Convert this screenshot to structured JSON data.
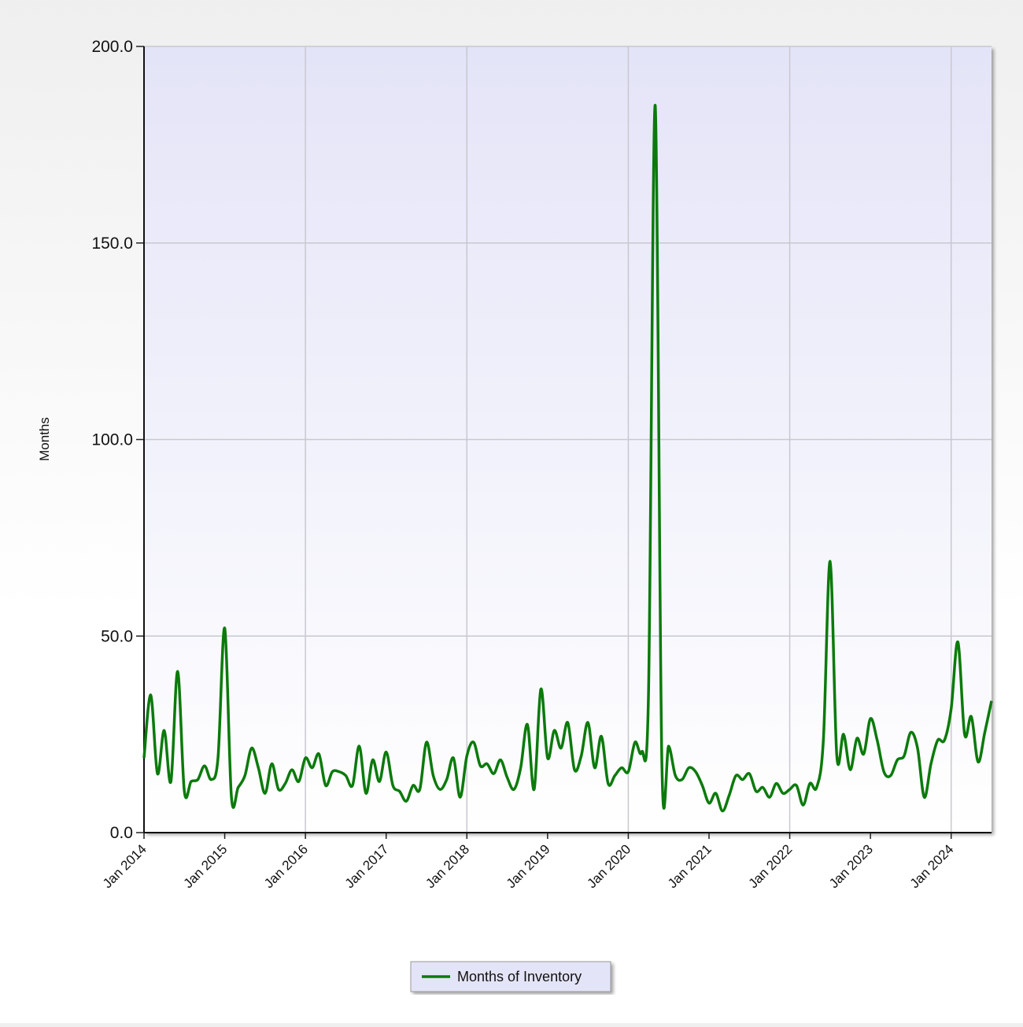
{
  "chart_data": {
    "type": "line",
    "y_label": "Months",
    "x": [
      "2014-01",
      "2014-02",
      "2014-03",
      "2014-04",
      "2014-05",
      "2014-06",
      "2014-07",
      "2014-08",
      "2014-09",
      "2014-10",
      "2014-11",
      "2014-12",
      "2015-01",
      "2015-02",
      "2015-03",
      "2015-04",
      "2015-05",
      "2015-06",
      "2015-07",
      "2015-08",
      "2015-09",
      "2015-10",
      "2015-11",
      "2015-12",
      "2016-01",
      "2016-02",
      "2016-03",
      "2016-04",
      "2016-05",
      "2016-06",
      "2016-07",
      "2016-08",
      "2016-09",
      "2016-10",
      "2016-11",
      "2016-12",
      "2017-01",
      "2017-02",
      "2017-03",
      "2017-04",
      "2017-05",
      "2017-06",
      "2017-07",
      "2017-08",
      "2017-09",
      "2017-10",
      "2017-11",
      "2017-12",
      "2018-01",
      "2018-02",
      "2018-03",
      "2018-04",
      "2018-05",
      "2018-06",
      "2018-07",
      "2018-08",
      "2018-09",
      "2018-10",
      "2018-11",
      "2018-12",
      "2019-01",
      "2019-02",
      "2019-03",
      "2019-04",
      "2019-05",
      "2019-06",
      "2019-07",
      "2019-08",
      "2019-09",
      "2019-10",
      "2019-11",
      "2019-12",
      "2020-01",
      "2020-02",
      "2020-03",
      "2020-04",
      "2020-05",
      "2020-06",
      "2020-07",
      "2020-08",
      "2020-09",
      "2020-10",
      "2020-11",
      "2020-12",
      "2021-01",
      "2021-02",
      "2021-03",
      "2021-04",
      "2021-05",
      "2021-06",
      "2021-07",
      "2021-08",
      "2021-09",
      "2021-10",
      "2021-11",
      "2021-12",
      "2022-01",
      "2022-02",
      "2022-03",
      "2022-04",
      "2022-05",
      "2022-06",
      "2022-07",
      "2022-08",
      "2022-09",
      "2022-10",
      "2022-11",
      "2022-12",
      "2023-01",
      "2023-02",
      "2023-03",
      "2023-04",
      "2023-05",
      "2023-06",
      "2023-07",
      "2023-08",
      "2023-09",
      "2023-10",
      "2023-11",
      "2023-12",
      "2024-01",
      "2024-02",
      "2024-03",
      "2024-04",
      "2024-05",
      "2024-06",
      "2024-07"
    ],
    "series": [
      {
        "name": "Months of Inventory",
        "color": "#0b7a0b",
        "values": [
          19,
          35,
          15,
          26,
          13,
          41,
          10.5,
          13,
          13.5,
          17,
          13.5,
          19,
          52,
          9,
          11.5,
          14.5,
          21.5,
          16.5,
          10,
          17.5,
          11,
          12.5,
          16,
          13,
          19,
          16.5,
          20,
          12,
          15.5,
          15.5,
          14.5,
          12,
          22,
          10,
          18.5,
          13,
          20.5,
          12,
          10.5,
          8,
          12,
          11,
          23,
          14.5,
          11,
          13.5,
          19,
          9,
          19.5,
          23,
          17,
          17.5,
          15,
          18.5,
          14,
          11,
          16.5,
          27.5,
          11,
          36.5,
          19,
          26,
          21.5,
          28,
          16,
          19.5,
          28,
          16.5,
          24.5,
          12.5,
          14.5,
          16.5,
          15.5,
          23,
          20.5,
          35,
          185,
          17,
          22,
          14.5,
          13.5,
          16.5,
          15.5,
          12,
          7.5,
          10,
          5.5,
          9.5,
          14.5,
          13.5,
          15,
          10.5,
          11.5,
          9,
          12.5,
          10,
          11,
          12,
          7,
          12.5,
          11.5,
          23.5,
          69,
          19.5,
          25,
          16,
          24,
          20,
          29,
          23.5,
          15.5,
          14.5,
          18.5,
          19.5,
          25.5,
          21.5,
          9,
          17.5,
          23.5,
          23.5,
          31.5,
          48.5,
          25,
          29.5,
          18,
          25.5,
          33.5
        ]
      }
    ],
    "xlim": [
      "2014-01",
      "2024-07"
    ],
    "xticks": [
      {
        "value": "2014-01",
        "label": "Jan 2014"
      },
      {
        "value": "2015-01",
        "label": "Jan 2015"
      },
      {
        "value": "2016-01",
        "label": "Jan 2016"
      },
      {
        "value": "2017-01",
        "label": "Jan 2017"
      },
      {
        "value": "2018-01",
        "label": "Jan 2018"
      },
      {
        "value": "2019-01",
        "label": "Jan 2019"
      },
      {
        "value": "2020-01",
        "label": "Jan 2020"
      },
      {
        "value": "2021-01",
        "label": "Jan 2021"
      },
      {
        "value": "2022-01",
        "label": "Jan 2022"
      },
      {
        "value": "2023-01",
        "label": "Jan 2023"
      },
      {
        "value": "2024-01",
        "label": "Jan 2024"
      }
    ],
    "ylim": [
      0,
      200
    ],
    "yticks": [
      {
        "value": 0,
        "label": "0.0"
      },
      {
        "value": 50,
        "label": "50.0"
      },
      {
        "value": 100,
        "label": "100.0"
      },
      {
        "value": 150,
        "label": "150.0"
      },
      {
        "value": 200,
        "label": "200.0"
      }
    ],
    "grid": true,
    "legend": "bottom"
  }
}
